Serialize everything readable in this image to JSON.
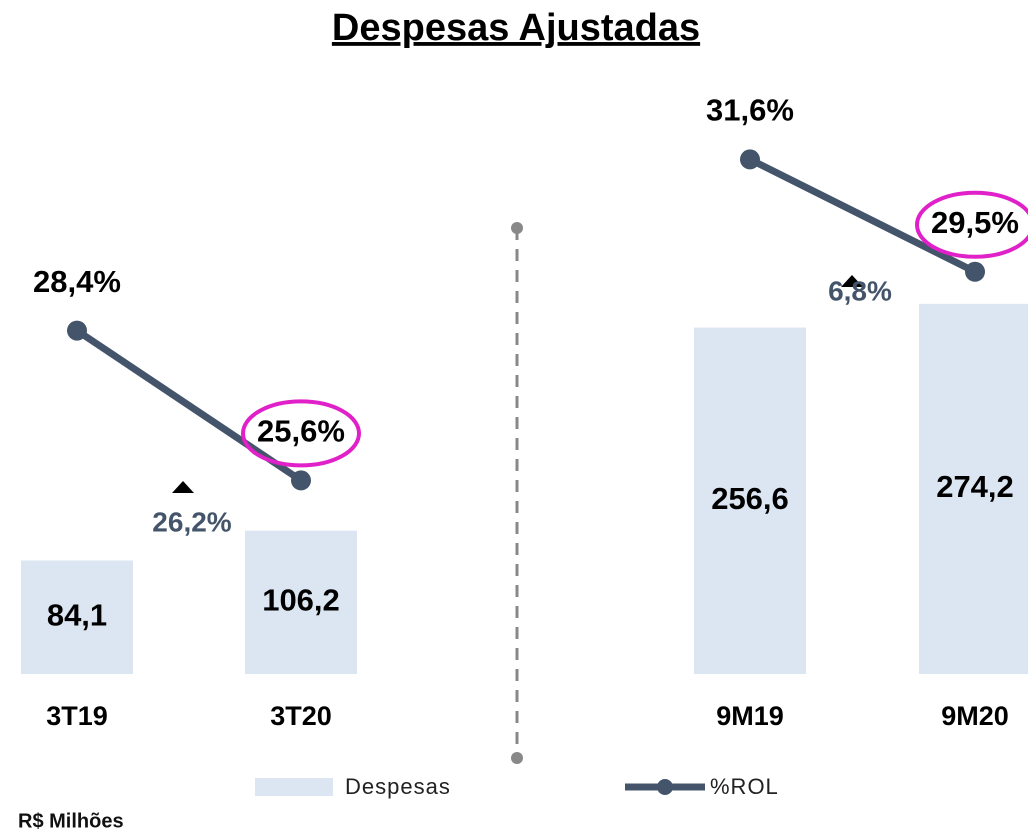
{
  "title": "Despesas Ajustadas",
  "unit": "R$ Milhões",
  "chart_data": [
    {
      "type": "bar_line",
      "categories": [
        "3T19",
        "3T20"
      ],
      "series": [
        {
          "name": "Despesas",
          "color": "#dce6f2",
          "values": [
            84.1,
            106.2
          ],
          "value_labels": [
            "84,1",
            "106,2"
          ]
        },
        {
          "name": "%ROL",
          "color": "#44546a",
          "values": [
            28.4,
            25.6
          ],
          "value_labels": [
            "28,4%",
            "25,6%"
          ]
        }
      ],
      "annotations": [
        "26,2%"
      ]
    },
    {
      "type": "bar_line",
      "categories": [
        "9M19",
        "9M20"
      ],
      "series": [
        {
          "name": "Despesas",
          "color": "#dce6f2",
          "values": [
            256.6,
            274.2
          ],
          "value_labels": [
            "256,6",
            "274,2"
          ]
        },
        {
          "name": "%ROL",
          "color": "#44546a",
          "values": [
            31.6,
            29.5
          ],
          "value_labels": [
            "31,6%",
            "29,5%"
          ]
        }
      ],
      "annotations": [
        "6,8%"
      ]
    }
  ]
}
